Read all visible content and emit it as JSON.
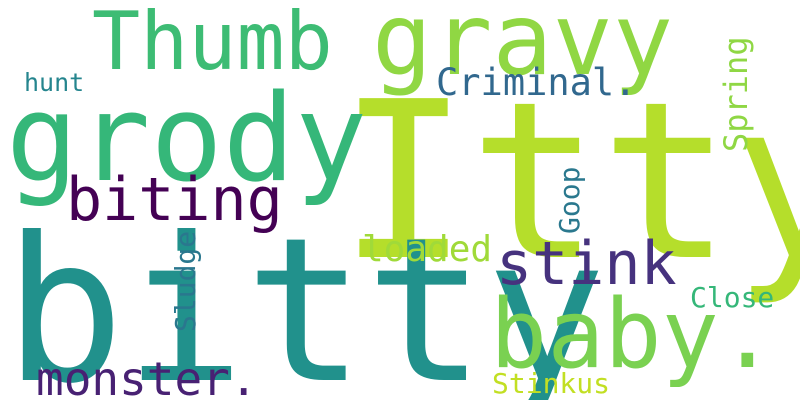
{
  "words": {
    "itty": {
      "text": "Itty",
      "color": "#b5de2b"
    },
    "bitty": {
      "text": "bitty",
      "color": "#21918c"
    },
    "grody": {
      "text": "grody",
      "color": "#35b779"
    },
    "gravy": {
      "text": "gravy",
      "color": "#90d743"
    },
    "thumb": {
      "text": "Thumb",
      "color": "#3dbc74"
    },
    "baby": {
      "text": "baby.",
      "color": "#7ad151"
    },
    "biting": {
      "text": "biting",
      "color": "#440154"
    },
    "stink": {
      "text": "stink",
      "color": "#46327e"
    },
    "monster": {
      "text": "monster.",
      "color": "#482173"
    },
    "criminal": {
      "text": "Criminal.",
      "color": "#31688e"
    },
    "loaded": {
      "text": "loaded",
      "color": "#a0da39"
    },
    "spring": {
      "text": "Spring",
      "color": "#8fd744"
    },
    "goop": {
      "text": "Goop",
      "color": "#2a788e"
    },
    "sludge": {
      "text": "Sludge",
      "color": "#2a778e"
    },
    "close": {
      "text": "Close",
      "color": "#35b779"
    },
    "stinkus": {
      "text": "Stinkus",
      "color": "#c2df23"
    },
    "hunt": {
      "text": "hunt",
      "color": "#25858e"
    }
  }
}
